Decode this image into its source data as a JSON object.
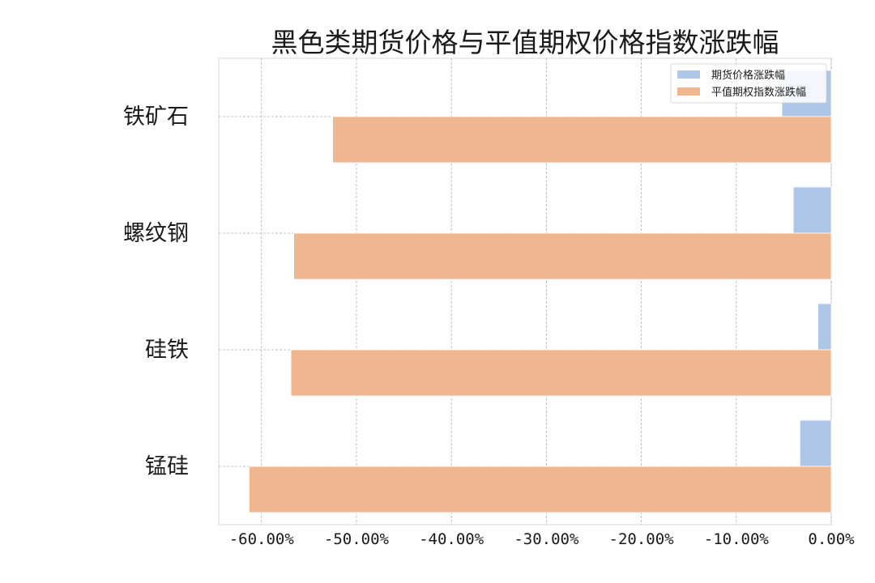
{
  "chart_data": {
    "type": "bar",
    "orientation": "horizontal",
    "title": "黑色类期货价格与平值期权价格指数涨跌幅",
    "categories": [
      "铁矿石",
      "螺纹钢",
      "硅铁",
      "锰硅"
    ],
    "series": [
      {
        "name": "期货价格涨跌幅",
        "color": "#aec7e8",
        "values": [
          -5.2,
          -4.0,
          -1.4,
          -3.3
        ]
      },
      {
        "name": "平值期权指数涨跌幅",
        "color": "#f0b690",
        "values": [
          -52.5,
          -56.6,
          -56.9,
          -61.3
        ]
      }
    ],
    "xlim": [
      -64.5,
      0
    ],
    "x_ticks": [
      -60,
      -50,
      -40,
      -30,
      -20,
      -10,
      0
    ],
    "x_tick_labels": [
      "-60.00%",
      "-50.00%",
      "-40.00%",
      "-30.00%",
      "-20.00%",
      "-10.00%",
      "0.00%"
    ],
    "grid": true,
    "legend_position": "top-right"
  }
}
